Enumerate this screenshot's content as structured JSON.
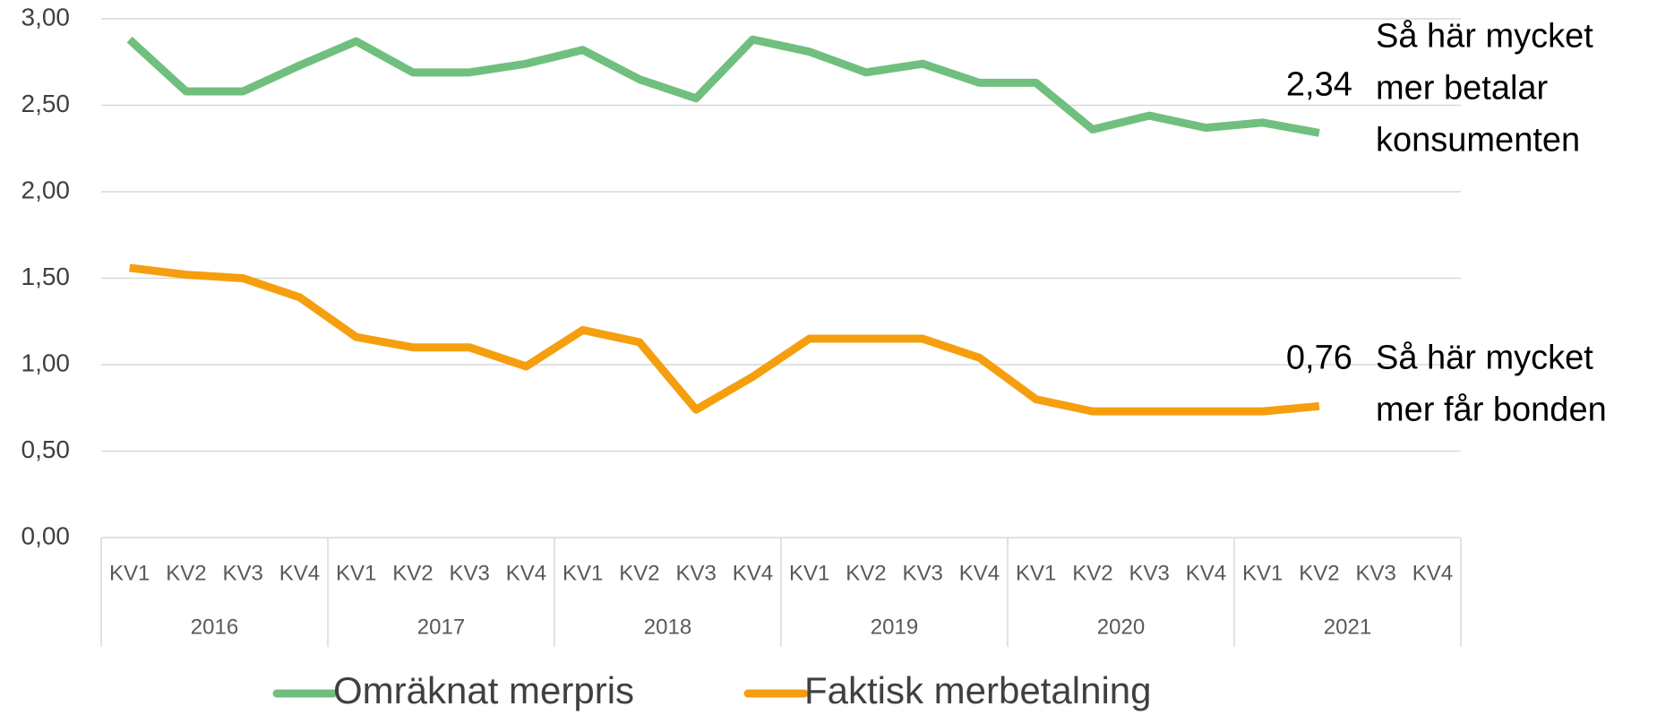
{
  "chart_data": {
    "type": "line",
    "categories": [
      "KV1",
      "KV2",
      "KV3",
      "KV4",
      "KV1",
      "KV2",
      "KV3",
      "KV4",
      "KV1",
      "KV2",
      "KV3",
      "KV4",
      "KV1",
      "KV2",
      "KV3",
      "KV4",
      "KV1",
      "KV2",
      "KV3",
      "KV4",
      "KV1",
      "KV2",
      "KV3",
      "KV4"
    ],
    "category_groups": [
      "2016",
      "2017",
      "2018",
      "2019",
      "2020",
      "2021"
    ],
    "series": [
      {
        "name": "Omräknat merpris",
        "color": "#70bf7e",
        "values": [
          2.88,
          2.58,
          2.58,
          2.73,
          2.87,
          2.69,
          2.69,
          2.74,
          2.82,
          2.65,
          2.54,
          2.88,
          2.81,
          2.69,
          2.74,
          2.63,
          2.63,
          2.36,
          2.44,
          2.37,
          2.4,
          2.34,
          null,
          null
        ],
        "value_labels": [
          null,
          null,
          null,
          null,
          null,
          null,
          null,
          null,
          null,
          null,
          null,
          null,
          null,
          null,
          null,
          null,
          null,
          null,
          null,
          null,
          null,
          "2,34",
          null,
          null
        ]
      },
      {
        "name": "Faktisk merbetalning",
        "color": "#f59f0f",
        "values": [
          1.56,
          1.52,
          1.5,
          1.39,
          1.16,
          1.1,
          1.1,
          0.99,
          1.2,
          1.13,
          0.74,
          0.93,
          1.15,
          1.15,
          1.15,
          1.04,
          0.8,
          0.73,
          0.73,
          0.73,
          0.73,
          0.76,
          null,
          null
        ],
        "value_labels": [
          null,
          null,
          null,
          null,
          null,
          null,
          null,
          null,
          null,
          null,
          null,
          null,
          null,
          null,
          null,
          null,
          null,
          null,
          null,
          null,
          null,
          "0,76",
          null,
          null
        ]
      }
    ],
    "annotations": [
      {
        "series": 0,
        "lines": [
          "Så här mycket",
          "mer betalar",
          "konsumenten"
        ]
      },
      {
        "series": 1,
        "lines": [
          "Så här mycket",
          "mer får bonden"
        ]
      }
    ],
    "ylim": [
      0,
      3
    ],
    "yticks": [
      {
        "value": 0,
        "label": "0,00"
      },
      {
        "value": 0.5,
        "label": "0,50"
      },
      {
        "value": 1,
        "label": "1,00"
      },
      {
        "value": 1.5,
        "label": "1,50"
      },
      {
        "value": 2,
        "label": "2,00"
      },
      {
        "value": 2.5,
        "label": "2,50"
      },
      {
        "value": 3,
        "label": "3,00"
      }
    ],
    "grid": true,
    "legend": "bottom"
  }
}
